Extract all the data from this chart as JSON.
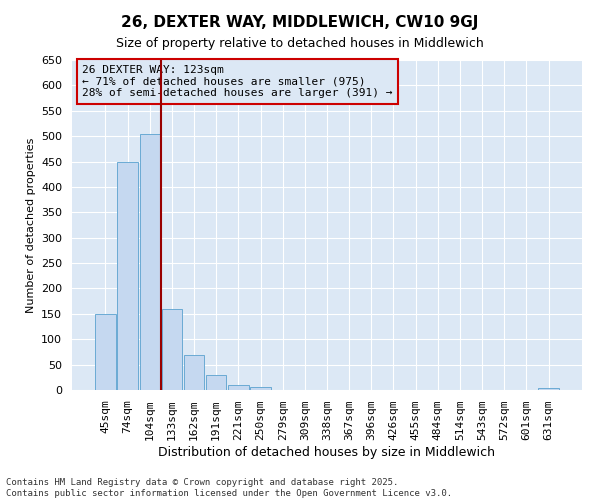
{
  "title": "26, DEXTER WAY, MIDDLEWICH, CW10 9GJ",
  "subtitle": "Size of property relative to detached houses in Middlewich",
  "xlabel": "Distribution of detached houses by size in Middlewich",
  "ylabel": "Number of detached properties",
  "categories": [
    "45sqm",
    "74sqm",
    "104sqm",
    "133sqm",
    "162sqm",
    "191sqm",
    "221sqm",
    "250sqm",
    "279sqm",
    "309sqm",
    "338sqm",
    "367sqm",
    "396sqm",
    "426sqm",
    "455sqm",
    "484sqm",
    "514sqm",
    "543sqm",
    "572sqm",
    "601sqm",
    "631sqm"
  ],
  "values": [
    150,
    450,
    505,
    160,
    68,
    30,
    10,
    5,
    0,
    0,
    0,
    0,
    0,
    0,
    0,
    0,
    0,
    0,
    0,
    0,
    3
  ],
  "bar_color": "#c5d8f0",
  "bar_edge_color": "#6aaad4",
  "axes_background_color": "#dce8f5",
  "figure_background_color": "#ffffff",
  "grid_color": "#ffffff",
  "vline_x": 2.5,
  "vline_color": "#990000",
  "annotation_title": "26 DEXTER WAY: 123sqm",
  "annotation_line1": "← 71% of detached houses are smaller (975)",
  "annotation_line2": "28% of semi-detached houses are larger (391) →",
  "annotation_box_facecolor": "#dce8f5",
  "annotation_box_edgecolor": "#cc0000",
  "footer_line1": "Contains HM Land Registry data © Crown copyright and database right 2025.",
  "footer_line2": "Contains public sector information licensed under the Open Government Licence v3.0.",
  "ylim": [
    0,
    650
  ],
  "yticks": [
    0,
    50,
    100,
    150,
    200,
    250,
    300,
    350,
    400,
    450,
    500,
    550,
    600,
    650
  ],
  "title_fontsize": 11,
  "subtitle_fontsize": 9,
  "ylabel_fontsize": 8,
  "xlabel_fontsize": 9,
  "tick_fontsize": 8,
  "ann_fontsize": 8,
  "footer_fontsize": 6.5
}
